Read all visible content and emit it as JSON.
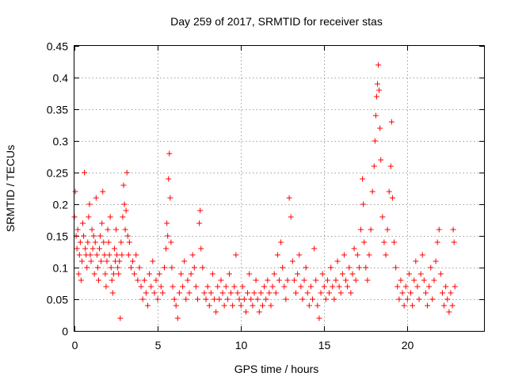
{
  "chart_data": {
    "type": "scatter",
    "title": "Day 259 of 2017, SRMTID for receiver stas",
    "xlabel": "GPS time / hours",
    "ylabel": "SRMTID / TECUs",
    "xlim": [
      0,
      24.6
    ],
    "ylim": [
      0,
      0.45
    ],
    "xticks": [
      0,
      5,
      10,
      15,
      20
    ],
    "xtick_labels": [
      "0",
      "5",
      "10",
      "15",
      "20"
    ],
    "yticks": [
      0,
      0.05,
      0.1,
      0.15,
      0.2,
      0.25,
      0.3,
      0.35,
      0.4,
      0.45
    ],
    "ytick_labels": [
      "0",
      "0.05",
      "0.1",
      "0.15",
      "0.2",
      "0.25",
      "0.3",
      "0.35",
      "0.4",
      "0.45"
    ],
    "grid": true,
    "marker": "+",
    "color": "#ff0000",
    "series": [
      {
        "name": "SRMTID",
        "points": [
          [
            0.0,
            0.18
          ],
          [
            0.05,
            0.22
          ],
          [
            0.1,
            0.15
          ],
          [
            0.15,
            0.13
          ],
          [
            0.2,
            0.16
          ],
          [
            0.25,
            0.09
          ],
          [
            0.3,
            0.12
          ],
          [
            0.35,
            0.14
          ],
          [
            0.4,
            0.08
          ],
          [
            0.45,
            0.11
          ],
          [
            0.5,
            0.17
          ],
          [
            0.55,
            0.15
          ],
          [
            0.6,
            0.25
          ],
          [
            0.65,
            0.13
          ],
          [
            0.7,
            0.12
          ],
          [
            0.75,
            0.1
          ],
          [
            0.8,
            0.14
          ],
          [
            0.85,
            0.18
          ],
          [
            0.9,
            0.2
          ],
          [
            0.95,
            0.12
          ],
          [
            1.0,
            0.11
          ],
          [
            1.05,
            0.16
          ],
          [
            1.1,
            0.13
          ],
          [
            1.15,
            0.15
          ],
          [
            1.2,
            0.09
          ],
          [
            1.25,
            0.14
          ],
          [
            1.3,
            0.21
          ],
          [
            1.35,
            0.12
          ],
          [
            1.4,
            0.1
          ],
          [
            1.45,
            0.08
          ],
          [
            1.5,
            0.13
          ],
          [
            1.55,
            0.15
          ],
          [
            1.6,
            0.11
          ],
          [
            1.65,
            0.17
          ],
          [
            1.7,
            0.22
          ],
          [
            1.75,
            0.14
          ],
          [
            1.8,
            0.12
          ],
          [
            1.85,
            0.09
          ],
          [
            1.9,
            0.07
          ],
          [
            1.95,
            0.11
          ],
          [
            2.0,
            0.16
          ],
          [
            2.05,
            0.14
          ],
          [
            2.1,
            0.12
          ],
          [
            2.15,
            0.18
          ],
          [
            2.2,
            0.1
          ],
          [
            2.25,
            0.08
          ],
          [
            2.3,
            0.06
          ],
          [
            2.35,
            0.09
          ],
          [
            2.4,
            0.13
          ],
          [
            2.45,
            0.11
          ],
          [
            2.5,
            0.16
          ],
          [
            2.55,
            0.12
          ],
          [
            2.6,
            0.1
          ],
          [
            2.65,
            0.09
          ],
          [
            2.7,
            0.11
          ],
          [
            2.75,
            0.02
          ],
          [
            2.8,
            0.14
          ],
          [
            2.85,
            0.12
          ],
          [
            2.9,
            0.18
          ],
          [
            2.95,
            0.23
          ],
          [
            3.0,
            0.2
          ],
          [
            3.05,
            0.16
          ],
          [
            3.1,
            0.19
          ],
          [
            3.15,
            0.25
          ],
          [
            3.2,
            0.15
          ],
          [
            3.25,
            0.12
          ],
          [
            3.3,
            0.14
          ],
          [
            3.4,
            0.1
          ],
          [
            3.5,
            0.11
          ],
          [
            3.6,
            0.09
          ],
          [
            3.7,
            0.12
          ],
          [
            3.8,
            0.08
          ],
          [
            3.9,
            0.1
          ],
          [
            4.0,
            0.07
          ],
          [
            4.1,
            0.05
          ],
          [
            4.2,
            0.08
          ],
          [
            4.3,
            0.06
          ],
          [
            4.4,
            0.04
          ],
          [
            4.5,
            0.09
          ],
          [
            4.6,
            0.07
          ],
          [
            4.7,
            0.11
          ],
          [
            4.8,
            0.06
          ],
          [
            4.9,
            0.08
          ],
          [
            5.0,
            0.05
          ],
          [
            5.1,
            0.09
          ],
          [
            5.2,
            0.07
          ],
          [
            5.3,
            0.06
          ],
          [
            5.4,
            0.1
          ],
          [
            5.5,
            0.13
          ],
          [
            5.55,
            0.17
          ],
          [
            5.6,
            0.15
          ],
          [
            5.65,
            0.24
          ],
          [
            5.7,
            0.28
          ],
          [
            5.75,
            0.21
          ],
          [
            5.8,
            0.14
          ],
          [
            5.85,
            0.1
          ],
          [
            5.9,
            0.07
          ],
          [
            6.0,
            0.05
          ],
          [
            6.1,
            0.04
          ],
          [
            6.2,
            0.02
          ],
          [
            6.3,
            0.06
          ],
          [
            6.4,
            0.09
          ],
          [
            6.5,
            0.07
          ],
          [
            6.6,
            0.11
          ],
          [
            6.7,
            0.05
          ],
          [
            6.8,
            0.08
          ],
          [
            6.9,
            0.06
          ],
          [
            7.0,
            0.09
          ],
          [
            7.1,
            0.12
          ],
          [
            7.2,
            0.1
          ],
          [
            7.3,
            0.07
          ],
          [
            7.4,
            0.05
          ],
          [
            7.5,
            0.17
          ],
          [
            7.55,
            0.19
          ],
          [
            7.6,
            0.13
          ],
          [
            7.7,
            0.1
          ],
          [
            7.8,
            0.06
          ],
          [
            7.9,
            0.05
          ],
          [
            8.0,
            0.07
          ],
          [
            8.1,
            0.04
          ],
          [
            8.2,
            0.06
          ],
          [
            8.3,
            0.09
          ],
          [
            8.4,
            0.05
          ],
          [
            8.5,
            0.03
          ],
          [
            8.6,
            0.07
          ],
          [
            8.7,
            0.05
          ],
          [
            8.8,
            0.08
          ],
          [
            8.9,
            0.06
          ],
          [
            9.0,
            0.04
          ],
          [
            9.1,
            0.07
          ],
          [
            9.2,
            0.05
          ],
          [
            9.3,
            0.09
          ],
          [
            9.4,
            0.06
          ],
          [
            9.5,
            0.04
          ],
          [
            9.6,
            0.07
          ],
          [
            9.7,
            0.12
          ],
          [
            9.8,
            0.06
          ],
          [
            9.9,
            0.05
          ],
          [
            10.0,
            0.04
          ],
          [
            10.1,
            0.07
          ],
          [
            10.2,
            0.05
          ],
          [
            10.3,
            0.03
          ],
          [
            10.4,
            0.06
          ],
          [
            10.5,
            0.09
          ],
          [
            10.6,
            0.05
          ],
          [
            10.7,
            0.04
          ],
          [
            10.8,
            0.06
          ],
          [
            10.9,
            0.08
          ],
          [
            11.0,
            0.05
          ],
          [
            11.1,
            0.03
          ],
          [
            11.2,
            0.06
          ],
          [
            11.3,
            0.04
          ],
          [
            11.4,
            0.07
          ],
          [
            11.5,
            0.05
          ],
          [
            11.6,
            0.08
          ],
          [
            11.7,
            0.06
          ],
          [
            11.8,
            0.04
          ],
          [
            11.9,
            0.07
          ],
          [
            12.0,
            0.09
          ],
          [
            12.1,
            0.06
          ],
          [
            12.2,
            0.12
          ],
          [
            12.3,
            0.08
          ],
          [
            12.4,
            0.14
          ],
          [
            12.5,
            0.1
          ],
          [
            12.6,
            0.07
          ],
          [
            12.7,
            0.05
          ],
          [
            12.8,
            0.08
          ],
          [
            12.9,
            0.21
          ],
          [
            13.0,
            0.18
          ],
          [
            13.1,
            0.11
          ],
          [
            13.2,
            0.08
          ],
          [
            13.3,
            0.06
          ],
          [
            13.4,
            0.09
          ],
          [
            13.5,
            0.12
          ],
          [
            13.6,
            0.07
          ],
          [
            13.7,
            0.05
          ],
          [
            13.8,
            0.08
          ],
          [
            13.9,
            0.1
          ],
          [
            14.0,
            0.06
          ],
          [
            14.1,
            0.04
          ],
          [
            14.2,
            0.07
          ],
          [
            14.3,
            0.05
          ],
          [
            14.4,
            0.13
          ],
          [
            14.5,
            0.08
          ],
          [
            14.6,
            0.04
          ],
          [
            14.7,
            0.02
          ],
          [
            14.8,
            0.06
          ],
          [
            14.9,
            0.09
          ],
          [
            15.0,
            0.07
          ],
          [
            15.1,
            0.05
          ],
          [
            15.2,
            0.08
          ],
          [
            15.3,
            0.06
          ],
          [
            15.4,
            0.1
          ],
          [
            15.5,
            0.07
          ],
          [
            15.6,
            0.05
          ],
          [
            15.7,
            0.08
          ],
          [
            15.8,
            0.11
          ],
          [
            15.9,
            0.07
          ],
          [
            16.0,
            0.06
          ],
          [
            16.1,
            0.09
          ],
          [
            16.2,
            0.12
          ],
          [
            16.3,
            0.08
          ],
          [
            16.4,
            0.07
          ],
          [
            16.5,
            0.1
          ],
          [
            16.6,
            0.06
          ],
          [
            16.7,
            0.09
          ],
          [
            16.8,
            0.13
          ],
          [
            16.9,
            0.08
          ],
          [
            17.0,
            0.12
          ],
          [
            17.1,
            0.1
          ],
          [
            17.2,
            0.16
          ],
          [
            17.3,
            0.24
          ],
          [
            17.35,
            0.2
          ],
          [
            17.4,
            0.14
          ],
          [
            17.5,
            0.1
          ],
          [
            17.6,
            0.08
          ],
          [
            17.7,
            0.12
          ],
          [
            17.8,
            0.16
          ],
          [
            17.9,
            0.22
          ],
          [
            18.0,
            0.26
          ],
          [
            18.05,
            0.3
          ],
          [
            18.1,
            0.34
          ],
          [
            18.15,
            0.37
          ],
          [
            18.2,
            0.39
          ],
          [
            18.25,
            0.42
          ],
          [
            18.3,
            0.38
          ],
          [
            18.35,
            0.32
          ],
          [
            18.4,
            0.27
          ],
          [
            18.5,
            0.18
          ],
          [
            18.6,
            0.14
          ],
          [
            18.7,
            0.12
          ],
          [
            18.8,
            0.16
          ],
          [
            18.9,
            0.22
          ],
          [
            19.0,
            0.26
          ],
          [
            19.05,
            0.33
          ],
          [
            19.1,
            0.21
          ],
          [
            19.2,
            0.14
          ],
          [
            19.3,
            0.1
          ],
          [
            19.4,
            0.07
          ],
          [
            19.5,
            0.05
          ],
          [
            19.6,
            0.08
          ],
          [
            19.7,
            0.06
          ],
          [
            19.8,
            0.04
          ],
          [
            19.9,
            0.07
          ],
          [
            20.0,
            0.05
          ],
          [
            20.1,
            0.09
          ],
          [
            20.2,
            0.06
          ],
          [
            20.3,
            0.04
          ],
          [
            20.4,
            0.08
          ],
          [
            20.5,
            0.11
          ],
          [
            20.6,
            0.07
          ],
          [
            20.7,
            0.05
          ],
          [
            20.8,
            0.09
          ],
          [
            20.9,
            0.12
          ],
          [
            21.0,
            0.08
          ],
          [
            21.1,
            0.06
          ],
          [
            21.2,
            0.04
          ],
          [
            21.3,
            0.07
          ],
          [
            21.4,
            0.1
          ],
          [
            21.5,
            0.05
          ],
          [
            21.6,
            0.08
          ],
          [
            21.7,
            0.11
          ],
          [
            21.8,
            0.14
          ],
          [
            21.9,
            0.16
          ],
          [
            22.0,
            0.09
          ],
          [
            22.1,
            0.06
          ],
          [
            22.2,
            0.04
          ],
          [
            22.3,
            0.07
          ],
          [
            22.4,
            0.05
          ],
          [
            22.5,
            0.03
          ],
          [
            22.6,
            0.06
          ],
          [
            22.7,
            0.04
          ],
          [
            22.75,
            0.16
          ],
          [
            22.8,
            0.14
          ],
          [
            22.85,
            0.07
          ]
        ]
      }
    ]
  }
}
